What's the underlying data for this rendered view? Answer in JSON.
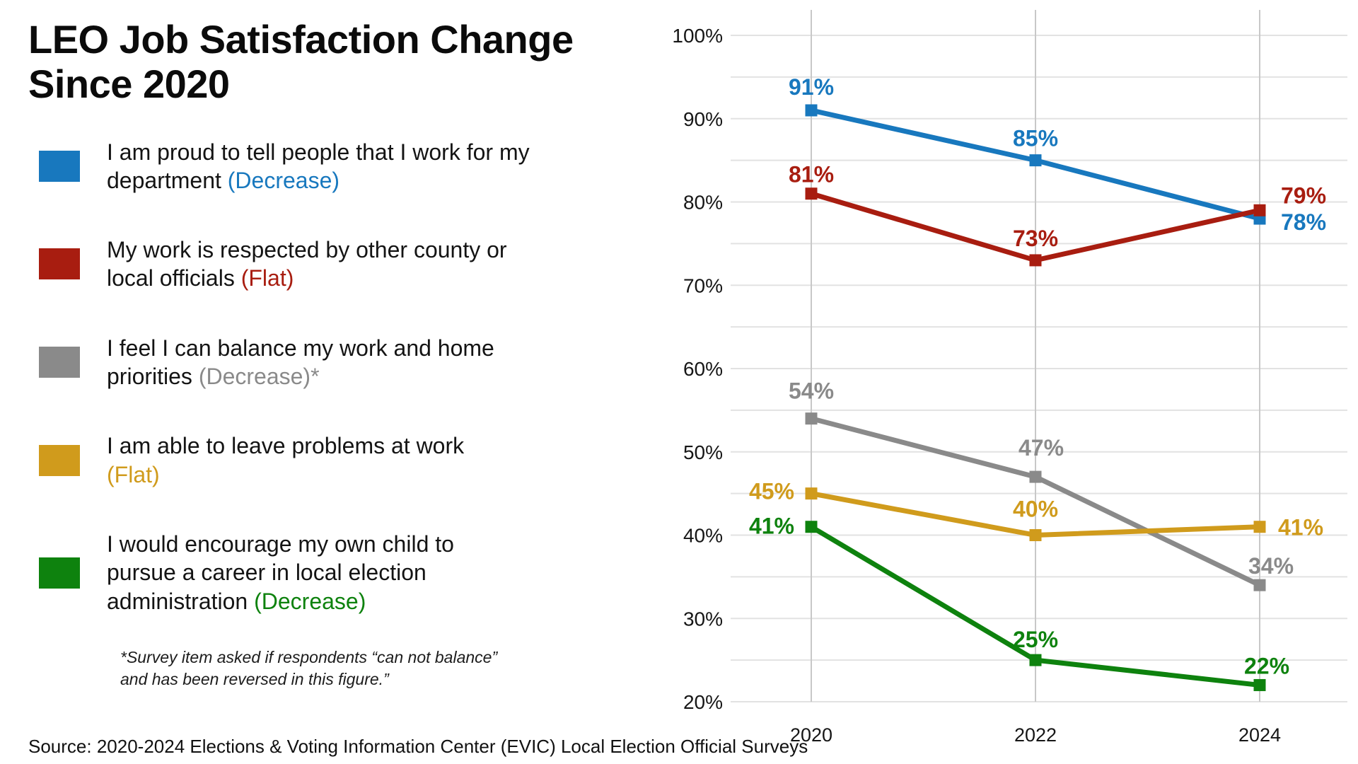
{
  "title": "LEO Job Satisfaction Change Since 2020",
  "footnote": "*Survey item asked if respondents “can not balance” and has been reversed in this figure.”",
  "source": "Source: 2020-2024 Elections & Voting Information Center (EVIC) Local Election Official Surveys",
  "chart_data": {
    "type": "line",
    "categories": [
      "2020",
      "2022",
      "2024"
    ],
    "y_ticks": [
      "100%",
      "90%",
      "80%",
      "70%",
      "60%",
      "50%",
      "40%",
      "30%",
      "20%"
    ],
    "ylim": [
      20,
      100
    ],
    "grid": "light horizontal lines every 5%, light vertical line at each year",
    "legend_position": "left",
    "marker": "square",
    "series": [
      {
        "name": "I am proud to tell people that I work for my department",
        "trend": "(Decrease)",
        "color": "#1878be",
        "values": [
          91,
          85,
          78
        ]
      },
      {
        "name": "My work is respected by other county or local officials",
        "trend": "(Flat)",
        "color": "#a81d10",
        "values": [
          81,
          73,
          79
        ]
      },
      {
        "name": "I feel I can balance my work and home priorities",
        "trend": "(Decrease)*",
        "color": "#8a8a8a",
        "values": [
          54,
          47,
          34
        ]
      },
      {
        "name": "I am able to leave problems at work",
        "trend": "(Flat)",
        "color": "#d09b1c",
        "values": [
          45,
          40,
          41
        ]
      },
      {
        "name": "I would encourage my own child to pursue a career in local election administration",
        "trend": "(Decrease)",
        "color": "#0e820e",
        "values": [
          41,
          25,
          22
        ]
      }
    ]
  }
}
